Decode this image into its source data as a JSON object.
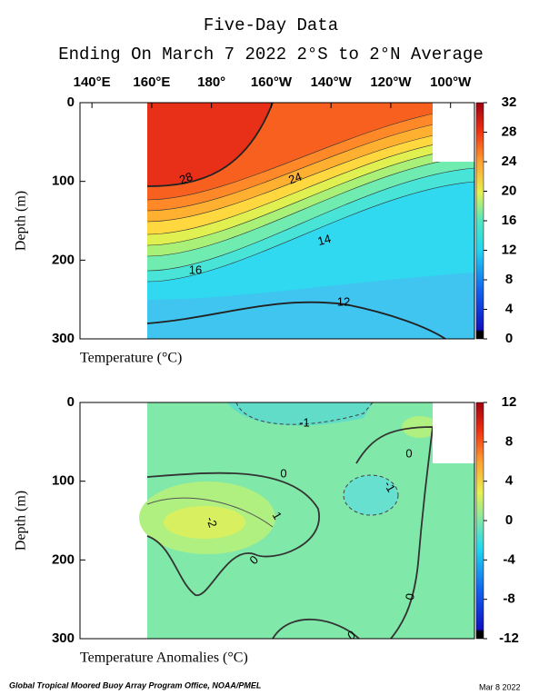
{
  "title": "Five-Day Data",
  "subtitle": "Ending On March 7 2022   2°S to 2°N Average",
  "footer_left": "Global Tropical Moored Buoy Array Program Office, NOAA/PMEL",
  "footer_right": "Mar  8 2022",
  "chart_data": [
    {
      "type": "contour",
      "xlabel": "Temperature (°C)",
      "ylabel": "Depth (m)",
      "xlim": [
        136,
        268
      ],
      "xticks": [
        {
          "value": 140,
          "label": "140°E"
        },
        {
          "value": 160,
          "label": "160°E"
        },
        {
          "value": 180,
          "label": "180°"
        },
        {
          "value": 200,
          "label": "160°W"
        },
        {
          "value": 220,
          "label": "140°W"
        },
        {
          "value": 240,
          "label": "120°W"
        },
        {
          "value": 260,
          "label": "100°W"
        }
      ],
      "ylim": [
        0,
        300
      ],
      "yticks": [
        0,
        100,
        200,
        300
      ],
      "clim": [
        0,
        32
      ],
      "cticks": [
        0,
        4,
        8,
        12,
        16,
        20,
        24,
        28,
        32
      ],
      "contour_labels": [
        28,
        24,
        14,
        16,
        12
      ]
    },
    {
      "type": "contour",
      "xlabel": "Temperature Anomalies (°C)",
      "ylabel": "Depth (m)",
      "xlim": [
        136,
        268
      ],
      "ylim": [
        0,
        300
      ],
      "yticks": [
        0,
        100,
        200,
        300
      ],
      "clim": [
        -12,
        12
      ],
      "cticks": [
        -12,
        -8,
        -4,
        0,
        4,
        8,
        12
      ],
      "contour_labels": [
        -1,
        0,
        0,
        -1,
        -2,
        1,
        0,
        0,
        0
      ]
    }
  ]
}
